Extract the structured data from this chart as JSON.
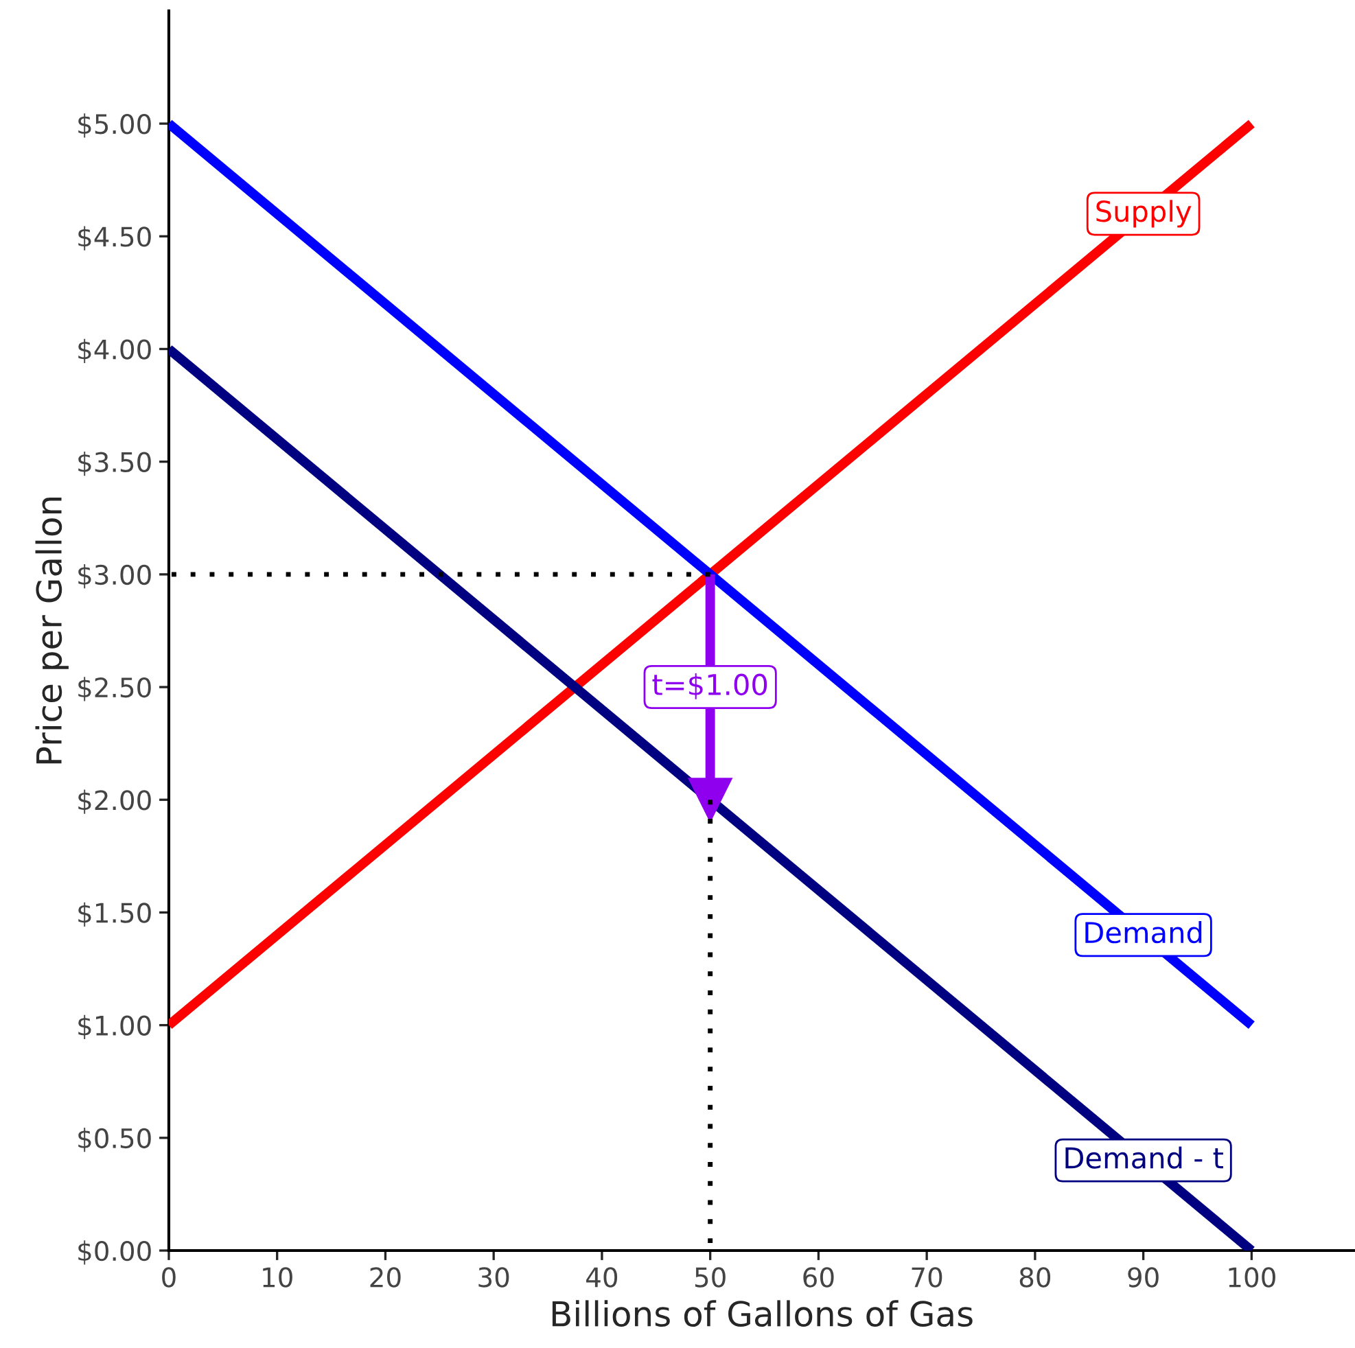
{
  "chart_data": {
    "type": "line",
    "xlabel": "Billions of Gallons of Gas",
    "ylabel": "Price per Gallon",
    "xlim": [
      0,
      109.5
    ],
    "ylim": [
      0,
      5.5
    ],
    "xticks": [
      0,
      10,
      20,
      30,
      40,
      50,
      60,
      70,
      80,
      90,
      100
    ],
    "yticks": [
      {
        "value": 0,
        "label": "$0.00"
      },
      {
        "value": 0.5,
        "label": "$0.50"
      },
      {
        "value": 1,
        "label": "$1.00"
      },
      {
        "value": 1.5,
        "label": "$1.50"
      },
      {
        "value": 2,
        "label": "$2.00"
      },
      {
        "value": 2.5,
        "label": "$2.50"
      },
      {
        "value": 3,
        "label": "$3.00"
      },
      {
        "value": 3.5,
        "label": "$3.50"
      },
      {
        "value": 4,
        "label": "$4.00"
      },
      {
        "value": 4.5,
        "label": "$4.50"
      },
      {
        "value": 5,
        "label": "$5.00"
      }
    ],
    "grid": false,
    "legend": false,
    "series": [
      {
        "x": [
          0,
          50
        ],
        "values": [
          3,
          3
        ],
        "color": "#000000",
        "line_style": "dotted"
      },
      {
        "x": [
          50,
          50
        ],
        "values": [
          0,
          2
        ],
        "color": "#000000",
        "line_style": "dotted"
      },
      {
        "name": "Supply",
        "x": [
          0,
          100
        ],
        "values": [
          1,
          5
        ],
        "color": "#ff0000"
      },
      {
        "name": "Demand",
        "x": [
          0,
          100
        ],
        "values": [
          5,
          1
        ],
        "color": "#0000ff"
      },
      {
        "name": "Demand - t",
        "x": [
          0,
          100
        ],
        "values": [
          4,
          0
        ],
        "color": "#000080"
      },
      {
        "x": [
          50,
          50
        ],
        "values": [
          3,
          2
        ],
        "color": "#8f00ef",
        "marker": "triangle"
      }
    ],
    "annotations": [
      {
        "text": "t=$1.00",
        "x": 50,
        "y": 2.5
      }
    ]
  }
}
